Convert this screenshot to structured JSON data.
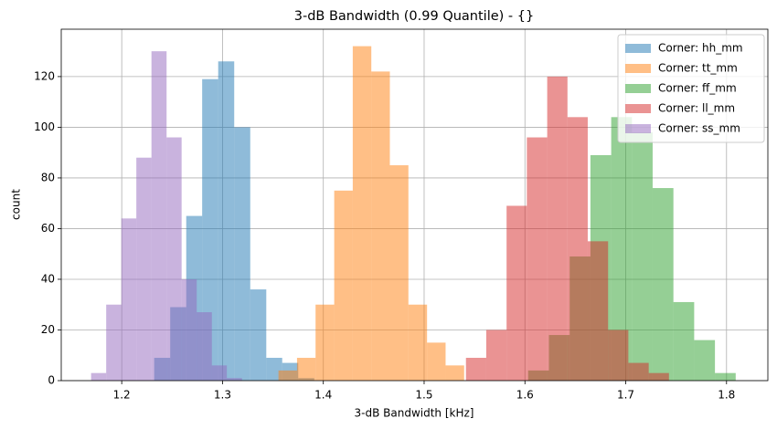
{
  "chart_data": {
    "type": "histogram",
    "title": "3-dB Bandwidth (0.99 Quantile) - {}",
    "x_label": "3-dB Bandwidth [kHz]",
    "y_label": "count",
    "xlim": [
      1.14,
      1.841
    ],
    "ylim": [
      0,
      138.7
    ],
    "xticks": [
      1.2,
      1.3,
      1.4,
      1.5,
      1.6,
      1.7,
      1.8
    ],
    "yticks": [
      0,
      20,
      40,
      60,
      80,
      100,
      120
    ],
    "grid": true,
    "legend": "upper-right",
    "opacity": 0.5,
    "series": [
      {
        "name": "Corner: hh_mm",
        "color": "#1f77b4",
        "bins": [
          1.2322,
          1.2481,
          1.264,
          1.2798,
          1.2957,
          1.3116,
          1.3275,
          1.3434,
          1.3592,
          1.3751,
          1.391
        ],
        "values": [
          9,
          29,
          65,
          119,
          126,
          100,
          36,
          9,
          7,
          1
        ]
      },
      {
        "name": "Corner: tt_mm",
        "color": "#ff7f0e",
        "bins": [
          1.3555,
          1.3739,
          1.3923,
          1.4108,
          1.4292,
          1.4476,
          1.466,
          1.4844,
          1.5029,
          1.5213,
          1.5397
        ],
        "values": [
          4,
          9,
          30,
          75,
          132,
          122,
          85,
          30,
          15,
          6
        ]
      },
      {
        "name": "Corner: ff_mm",
        "color": "#2ca02c",
        "bins": [
          1.6032,
          1.6238,
          1.6444,
          1.665,
          1.6856,
          1.7062,
          1.7267,
          1.7473,
          1.7679,
          1.7885,
          1.8091
        ],
        "values": [
          4,
          18,
          49,
          89,
          104,
          98,
          76,
          31,
          16,
          3
        ]
      },
      {
        "name": "Corner: ll_mm",
        "color": "#d62728",
        "bins": [
          1.5415,
          1.5616,
          1.5818,
          1.6019,
          1.6221,
          1.6422,
          1.6623,
          1.6825,
          1.7026,
          1.7228,
          1.7429
        ],
        "values": [
          9,
          20,
          69,
          96,
          120,
          104,
          55,
          20,
          7,
          3
        ]
      },
      {
        "name": "Corner: ss_mm",
        "color": "#9467bd",
        "bins": [
          1.1696,
          1.1846,
          1.1996,
          1.2145,
          1.2295,
          1.2445,
          1.2594,
          1.2744,
          1.2894,
          1.3043,
          1.3193
        ],
        "values": [
          3,
          30,
          64,
          88,
          130,
          96,
          40,
          27,
          6,
          1
        ]
      }
    ]
  }
}
